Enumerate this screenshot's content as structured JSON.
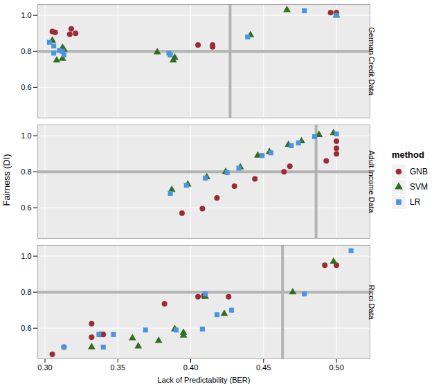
{
  "chart_data": {
    "type": "scatter",
    "x_label": "Lack of Predictability (BER)",
    "y_label": "Fairness (DI)",
    "legend_title": "method",
    "grid": true,
    "legend": "right",
    "xlim": [
      0.295,
      0.523
    ],
    "xticks": [
      {
        "value": 0.3,
        "label": "0.30"
      },
      {
        "value": 0.35,
        "label": "0.35"
      },
      {
        "value": 0.4,
        "label": "0.40"
      },
      {
        "value": 0.45,
        "label": "0.45"
      },
      {
        "value": 0.5,
        "label": "0.50"
      }
    ],
    "ylim": [
      0.43,
      1.06
    ],
    "yticks": [
      0.6,
      0.8,
      {
        "value": 1.0,
        "label": "1.0"
      }
    ],
    "series": [
      {
        "name": "GNB",
        "color": "#9b2b35",
        "marker": "circle"
      },
      {
        "name": "SVM",
        "color": "#2f6e1e",
        "marker": "triangle"
      },
      {
        "name": "LR",
        "color": "#4a94e0",
        "marker": "square"
      }
    ],
    "panels": [
      {
        "title": "German Credit Data",
        "reference_lines": {
          "x": 0.427,
          "y": 0.8
        },
        "series": [
          {
            "name": "GNB",
            "x": [
              0.305,
              0.307,
              0.318,
              0.317,
              0.321,
              0.405,
              0.415,
              0.415,
              0.496,
              0.5,
              0.5
            ],
            "y": [
              0.91,
              0.905,
              0.925,
              0.895,
              0.9,
              0.835,
              0.835,
              0.825,
              1.015,
              1.015,
              1.005
            ]
          },
          {
            "name": "SVM",
            "x": [
              0.305,
              0.308,
              0.312,
              0.312,
              0.313,
              0.377,
              0.388,
              0.389,
              0.441,
              0.466,
              0.5
            ],
            "y": [
              0.86,
              0.75,
              0.76,
              0.82,
              0.81,
              0.795,
              0.75,
              0.765,
              0.89,
              1.03,
              1.0
            ]
          },
          {
            "name": "LR",
            "x": [
              0.303,
              0.306,
              0.306,
              0.31,
              0.313,
              0.312,
              0.385,
              0.386,
              0.439,
              0.478,
              0.5
            ],
            "y": [
              0.85,
              0.83,
              0.79,
              0.805,
              0.78,
              0.8,
              0.79,
              0.78,
              0.88,
              1.025,
              1.0
            ]
          }
        ]
      },
      {
        "title": "Adult Income Data",
        "reference_lines": {
          "x": 0.486,
          "y": 0.8
        },
        "series": [
          {
            "name": "GNB",
            "x": [
              0.394,
              0.408,
              0.418,
              0.43,
              0.444,
              0.464,
              0.468,
              0.493,
              0.5,
              0.5,
              0.5
            ],
            "y": [
              0.57,
              0.595,
              0.655,
              0.72,
              0.76,
              0.8,
              0.83,
              0.86,
              0.9,
              0.93,
              0.97
            ]
          },
          {
            "name": "SVM",
            "x": [
              0.387,
              0.398,
              0.411,
              0.424,
              0.434,
              0.446,
              0.454,
              0.467,
              0.476,
              0.488,
              0.498
            ],
            "y": [
              0.7,
              0.73,
              0.77,
              0.8,
              0.825,
              0.89,
              0.91,
              0.95,
              0.97,
              1.005,
              1.015
            ]
          },
          {
            "name": "LR",
            "x": [
              0.386,
              0.397,
              0.41,
              0.425,
              0.433,
              0.449,
              0.455,
              0.469,
              0.474,
              0.485,
              0.5
            ],
            "y": [
              0.68,
              0.725,
              0.765,
              0.795,
              0.82,
              0.89,
              0.905,
              0.945,
              0.96,
              0.995,
              1.01
            ]
          }
        ]
      },
      {
        "title": "Ricci Data",
        "reference_lines": {
          "x": 0.463,
          "y": 0.8
        },
        "series": [
          {
            "name": "GNB",
            "x": [
              0.305,
              0.313,
              0.332,
              0.332,
              0.338,
              0.34,
              0.382,
              0.405,
              0.409,
              0.426,
              0.492,
              0.5
            ],
            "y": [
              0.455,
              0.495,
              0.625,
              0.55,
              0.565,
              0.565,
              0.735,
              0.775,
              0.78,
              0.775,
              0.95,
              0.95
            ]
          },
          {
            "name": "SVM",
            "x": [
              0.332,
              0.36,
              0.364,
              0.378,
              0.389,
              0.395,
              0.395,
              0.41,
              0.423,
              0.47,
              0.498
            ],
            "y": [
              0.495,
              0.545,
              0.5,
              0.53,
              0.595,
              0.575,
              0.56,
              0.775,
              0.68,
              0.8,
              0.97
            ]
          },
          {
            "name": "LR",
            "x": [
              0.313,
              0.337,
              0.34,
              0.347,
              0.369,
              0.39,
              0.408,
              0.41,
              0.418,
              0.428,
              0.478,
              0.51
            ],
            "y": [
              0.495,
              0.565,
              0.495,
              0.565,
              0.59,
              0.59,
              0.595,
              0.79,
              0.675,
              0.7,
              0.79,
              1.03
            ]
          }
        ]
      }
    ]
  }
}
